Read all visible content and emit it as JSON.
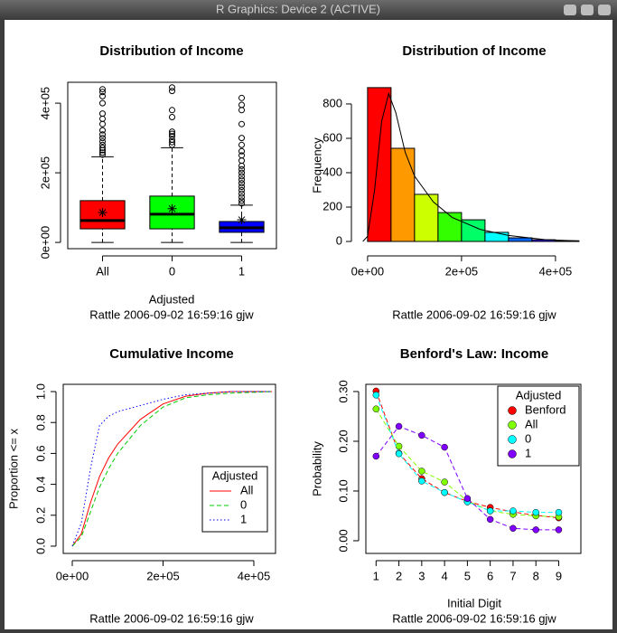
{
  "window": {
    "title": "R Graphics: Device 2 (ACTIVE)"
  },
  "chart_data": [
    {
      "type": "box",
      "title": "Distribution of Income",
      "xlabel": "Adjusted",
      "subtitle": "Rattle 2006-09-02 16:59:16 gjw",
      "categories": [
        "All",
        "0",
        "1"
      ],
      "colors": [
        "#ff0000",
        "#00ff00",
        "#0000ff"
      ],
      "frame": true,
      "ytick_rotate": true,
      "boxes": [
        {
          "whislo": 0,
          "q1": 39000,
          "med": 63000,
          "q3": 120000,
          "whishi": 246000,
          "mean": 86000,
          "outliers": [
            252000,
            258000,
            265000,
            272000,
            280000,
            290000,
            300000,
            310000,
            322000,
            340000,
            355000,
            370000,
            400000,
            420000,
            432000,
            440000
          ]
        },
        {
          "whislo": 0,
          "q1": 39000,
          "med": 81000,
          "q3": 133000,
          "whishi": 272000,
          "mean": 97000,
          "outliers": [
            280000,
            288000,
            295000,
            305000,
            312000,
            318000,
            360000,
            380000,
            435000,
            445000
          ]
        },
        {
          "whislo": 0,
          "q1": 29000,
          "med": 42000,
          "q3": 60000,
          "whishi": 107000,
          "mean": 65000,
          "outliers": [
            112000,
            120000,
            130000,
            140000,
            150000,
            160000,
            170000,
            180000,
            190000,
            200000,
            210000,
            220000,
            235000,
            250000,
            262000,
            280000,
            300000,
            340000,
            380000,
            395000,
            415000
          ]
        }
      ],
      "ylim": [
        -18000,
        460000
      ],
      "yticks": [
        {
          "value": 0,
          "label": "0e+00"
        },
        {
          "value": 200000,
          "label": "2e+05"
        },
        {
          "value": 400000,
          "label": "4e+05"
        }
      ]
    },
    {
      "type": "histogram",
      "title": "Distribution of Income",
      "ylabel": "Frequency",
      "subtitle": "Rattle 2006-09-02 16:59:16 gjw",
      "bins": [
        0,
        50000,
        100000,
        150000,
        200000,
        250000,
        300000,
        350000,
        400000,
        450000
      ],
      "values": [
        895,
        542,
        274,
        168,
        126,
        53,
        21,
        10,
        4
      ],
      "colors": [
        "#ff0000",
        "#ff9900",
        "#ccff00",
        "#33ff00",
        "#00ff66",
        "#00ffff",
        "#0066ff",
        "#3300ff",
        "#cc00ff"
      ],
      "density": {
        "x": [
          -10000,
          0,
          15000,
          30000,
          45000,
          60000,
          80000,
          100000,
          140000,
          180000,
          240000,
          300000,
          380000,
          450000
        ],
        "values": [
          0,
          30,
          300,
          700,
          860,
          750,
          520,
          380,
          230,
          140,
          70,
          35,
          10,
          3
        ]
      },
      "frame": false,
      "ytick_rotate": false,
      "xlim": [
        -19000,
        454000
      ],
      "ylim": [
        -42,
        926
      ],
      "xticks": [
        {
          "value": 0,
          "label": "0e+00"
        },
        {
          "value": 200000,
          "label": "2e+05"
        },
        {
          "value": 400000,
          "label": "4e+05"
        }
      ],
      "yticks": [
        0,
        200,
        400,
        600,
        800
      ]
    },
    {
      "type": "line",
      "title": "Cumulative Income",
      "ylabel": "Proportion <= x",
      "subtitle": "Rattle 2006-09-02 16:59:16 gjw",
      "x": [
        0,
        20000,
        40000,
        60000,
        80000,
        100000,
        150000,
        200000,
        250000,
        300000,
        350000,
        440000
      ],
      "series": [
        {
          "name": "All",
          "color": "#ff0000",
          "linestyle": "solid",
          "values": [
            0,
            0.08,
            0.28,
            0.45,
            0.57,
            0.66,
            0.82,
            0.92,
            0.97,
            0.99,
            1.0,
            1.0
          ]
        },
        {
          "name": "0",
          "color": "#00cc00",
          "linestyle": "dashed",
          "values": [
            0,
            0.06,
            0.22,
            0.38,
            0.5,
            0.6,
            0.78,
            0.9,
            0.96,
            0.98,
            0.99,
            1.0
          ]
        },
        {
          "name": "1",
          "color": "#0000ff",
          "linestyle": "dotted",
          "values": [
            0,
            0.15,
            0.5,
            0.78,
            0.84,
            0.87,
            0.91,
            0.95,
            0.98,
            0.99,
            1.0,
            1.0
          ]
        }
      ],
      "markers": false,
      "legend_title": "Adjusted",
      "legend": "bottomright",
      "frame": true,
      "ytick_rotate": true,
      "xlim": [
        -19900,
        447800
      ],
      "ylim": [
        -0.047,
        1.047
      ],
      "xticks": [
        {
          "value": 0,
          "label": "0e+00"
        },
        {
          "value": 200000,
          "label": "2e+05"
        },
        {
          "value": 400000,
          "label": "4e+05"
        }
      ],
      "yticks": [
        {
          "value": 0,
          "label": "0.0"
        },
        0.2,
        0.4,
        0.6,
        0.8,
        {
          "value": 1,
          "label": "1.0"
        }
      ]
    },
    {
      "type": "line",
      "title": "Benford's Law: Income",
      "xlabel": "Initial Digit",
      "ylabel": "Probability",
      "subtitle": "Rattle 2006-09-02 16:59:16 gjw",
      "x": [
        1,
        2,
        3,
        4,
        5,
        6,
        7,
        8,
        9
      ],
      "series": [
        {
          "name": "Benford",
          "color": "#ff0000",
          "linestyle": "dashed",
          "values": [
            0.301,
            0.176,
            0.125,
            0.097,
            0.079,
            0.067,
            0.058,
            0.051,
            0.046
          ]
        },
        {
          "name": "All",
          "color": "#80ff00",
          "linestyle": "dashed",
          "values": [
            0.265,
            0.19,
            0.14,
            0.118,
            0.08,
            0.06,
            0.053,
            0.05,
            0.048
          ]
        },
        {
          "name": "0",
          "color": "#00ffff",
          "linestyle": "dashed",
          "values": [
            0.293,
            0.175,
            0.12,
            0.097,
            0.078,
            0.06,
            0.06,
            0.057,
            0.057
          ]
        },
        {
          "name": "1",
          "color": "#8000ff",
          "linestyle": "dashed",
          "values": [
            0.17,
            0.23,
            0.212,
            0.188,
            0.085,
            0.043,
            0.025,
            0.022,
            0.022
          ]
        }
      ],
      "markers": true,
      "legend_title": "Adjusted",
      "legend": "topright",
      "frame": true,
      "ytick_rotate": true,
      "xlim": [
        0.553,
        9.97
      ],
      "ylim": [
        -0.0255,
        0.3145
      ],
      "xticks": [
        1,
        2,
        3,
        4,
        5,
        6,
        7,
        8,
        9
      ],
      "yticks": [
        {
          "value": 0,
          "label": "0.00"
        },
        {
          "value": 0.1,
          "label": "0.10"
        },
        {
          "value": 0.2,
          "label": "0.20"
        },
        {
          "value": 0.3,
          "label": "0.30"
        }
      ]
    }
  ]
}
